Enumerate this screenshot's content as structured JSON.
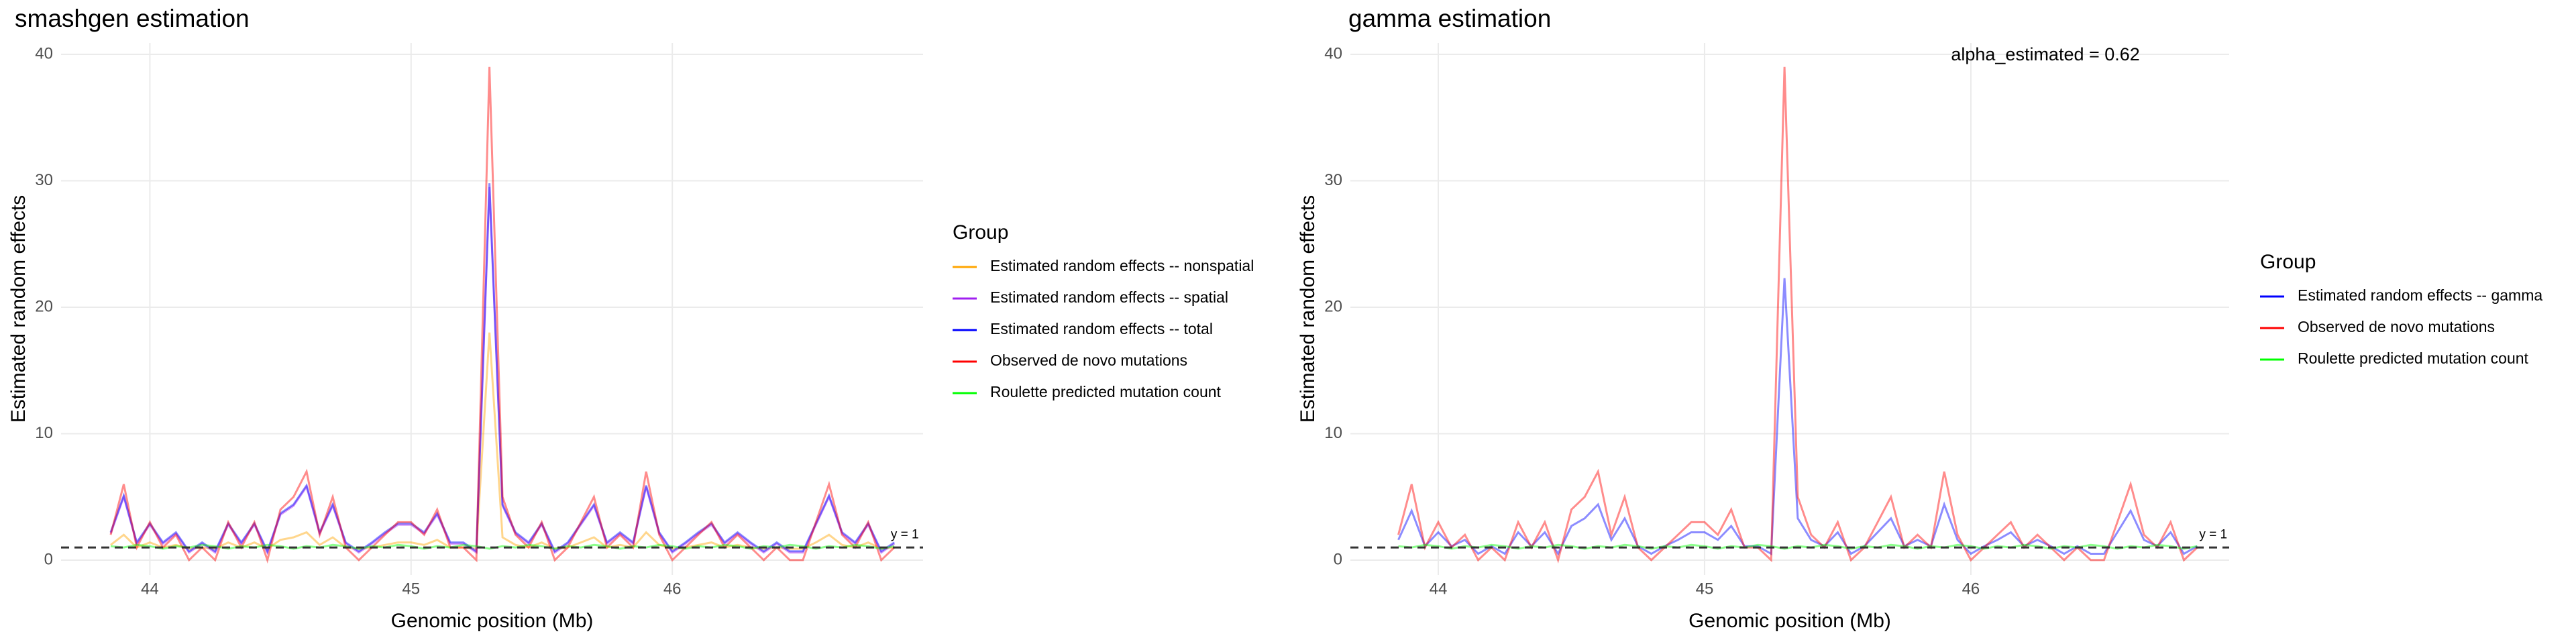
{
  "chart_data": [
    {
      "type": "line",
      "title": "smashgen estimation",
      "xlabel": "Genomic position (Mb)",
      "ylabel": "Estimated random effects",
      "x": [
        43.85,
        43.9,
        43.95,
        44.0,
        44.05,
        44.1,
        44.15,
        44.2,
        44.25,
        44.3,
        44.35,
        44.4,
        44.45,
        44.5,
        44.55,
        44.6,
        44.65,
        44.7,
        44.75,
        44.8,
        44.85,
        44.9,
        44.95,
        45.0,
        45.05,
        45.1,
        45.15,
        45.2,
        45.25,
        45.3,
        45.35,
        45.4,
        45.45,
        45.5,
        45.55,
        45.6,
        45.65,
        45.7,
        45.75,
        45.8,
        45.85,
        45.9,
        45.95,
        46.0,
        46.05,
        46.1,
        46.15,
        46.2,
        46.25,
        46.3,
        46.35,
        46.4,
        46.45,
        46.5,
        46.55,
        46.6,
        46.65,
        46.7,
        46.75,
        46.8,
        46.85
      ],
      "series": [
        {
          "name": "Estimated random effects -- nonspatial",
          "color": "#FFA500",
          "values": [
            1.2,
            2.0,
            1.0,
            1.4,
            1.0,
            1.2,
            0.9,
            1.0,
            0.9,
            1.4,
            1.0,
            1.4,
            0.9,
            1.6,
            1.8,
            2.2,
            1.2,
            1.8,
            1.0,
            0.9,
            1.0,
            1.2,
            1.4,
            1.4,
            1.2,
            1.6,
            1.0,
            1.0,
            0.9,
            18,
            1.8,
            1.2,
            1.0,
            1.4,
            0.9,
            1.0,
            1.4,
            1.8,
            1.0,
            1.2,
            1.0,
            2.2,
            1.2,
            0.9,
            1.0,
            1.2,
            1.4,
            1.0,
            1.2,
            1.0,
            0.9,
            1.0,
            0.9,
            0.9,
            1.4,
            2.0,
            1.2,
            1.0,
            1.4,
            0.9,
            1.0
          ]
        },
        {
          "name": "Estimated random effects -- spatial",
          "color": "#A020F0",
          "values": [
            2.1,
            5.0,
            1.3,
            2.8,
            1.3,
            2.1,
            0.6,
            1.3,
            0.6,
            2.8,
            1.3,
            2.8,
            0.6,
            3.6,
            4.3,
            5.8,
            2.1,
            4.3,
            1.3,
            0.6,
            1.3,
            2.1,
            2.8,
            2.8,
            2.1,
            3.6,
            1.3,
            1.3,
            0.6,
            29.5,
            4.3,
            2.1,
            1.3,
            2.8,
            0.6,
            1.3,
            2.8,
            4.3,
            1.3,
            2.1,
            1.3,
            5.8,
            2.1,
            0.6,
            1.3,
            2.1,
            2.8,
            1.3,
            2.1,
            1.3,
            0.6,
            1.3,
            0.6,
            0.6,
            2.8,
            5.0,
            2.1,
            1.3,
            2.8,
            0.6,
            1.3
          ]
        },
        {
          "name": "Estimated random effects -- total",
          "color": "#0000FF",
          "values": [
            2.2,
            5.1,
            1.4,
            2.9,
            1.4,
            2.2,
            0.7,
            1.4,
            0.7,
            2.9,
            1.4,
            2.9,
            0.7,
            3.7,
            4.4,
            5.9,
            2.2,
            4.4,
            1.4,
            0.7,
            1.4,
            2.2,
            2.9,
            2.9,
            2.2,
            3.7,
            1.4,
            1.4,
            0.7,
            29.8,
            4.4,
            2.2,
            1.4,
            2.9,
            0.7,
            1.4,
            2.9,
            4.4,
            1.4,
            2.2,
            1.4,
            5.9,
            2.2,
            0.7,
            1.4,
            2.2,
            2.9,
            1.4,
            2.2,
            1.4,
            0.7,
            1.4,
            0.7,
            0.7,
            2.9,
            5.1,
            2.2,
            1.4,
            2.9,
            0.7,
            1.4
          ]
        },
        {
          "name": "Observed de novo mutations",
          "color": "#FF0000",
          "values": [
            2,
            6,
            1,
            3,
            1,
            2,
            0,
            1,
            0,
            3,
            1,
            3,
            0,
            4,
            5,
            7,
            2,
            5,
            1,
            0,
            1,
            2,
            3,
            3,
            2,
            4,
            1,
            1,
            0,
            39,
            5,
            2,
            1,
            3,
            0,
            1,
            3,
            5,
            1,
            2,
            1,
            7,
            2,
            0,
            1,
            2,
            3,
            1,
            2,
            1,
            0,
            1,
            0,
            0,
            3,
            6,
            2,
            1,
            3,
            0,
            1
          ]
        },
        {
          "name": "Roulette predicted mutation count",
          "color": "#00FF00",
          "values": [
            1.1,
            1.0,
            1.2,
            1.1,
            0.9,
            1.1,
            1.0,
            1.2,
            1.1,
            0.9,
            1.1,
            1.0,
            1.2,
            1.1,
            0.9,
            1.1,
            1.0,
            1.2,
            1.1,
            0.9,
            1.1,
            1.0,
            1.2,
            1.1,
            0.9,
            1.1,
            1.0,
            1.2,
            1.1,
            0.9,
            1.1,
            1.0,
            1.2,
            1.1,
            0.9,
            1.1,
            1.0,
            1.2,
            1.1,
            0.9,
            1.1,
            1.0,
            1.2,
            1.1,
            0.9,
            1.1,
            1.0,
            1.2,
            1.1,
            0.9,
            1.1,
            1.0,
            1.2,
            1.1,
            0.9,
            1.1,
            1.0,
            1.2,
            1.1,
            0.9,
            1.1
          ]
        }
      ],
      "line_alpha": 0.45,
      "xlim": [
        43.66,
        46.96
      ],
      "xticks": [
        44,
        45,
        46
      ],
      "ylim": [
        -1.17,
        40.9
      ],
      "yticks": [
        0,
        10,
        20,
        30,
        40
      ],
      "grid": true,
      "hline": 1,
      "legend_title": "Group",
      "legend_position": "right",
      "annotations": [
        {
          "text": "y = 1",
          "x": 46.89,
          "y": 2.0,
          "color": "#000000"
        }
      ]
    },
    {
      "type": "line",
      "title": "gamma estimation",
      "xlabel": "Genomic position (Mb)",
      "ylabel": "Estimated random effects",
      "x": [
        43.85,
        43.9,
        43.95,
        44.0,
        44.05,
        44.1,
        44.15,
        44.2,
        44.25,
        44.3,
        44.35,
        44.4,
        44.45,
        44.5,
        44.55,
        44.6,
        44.65,
        44.7,
        44.75,
        44.8,
        44.85,
        44.9,
        44.95,
        45.0,
        45.05,
        45.1,
        45.15,
        45.2,
        45.25,
        45.3,
        45.35,
        45.4,
        45.45,
        45.5,
        45.55,
        45.6,
        45.65,
        45.7,
        45.75,
        45.8,
        45.85,
        45.9,
        45.95,
        46.0,
        46.05,
        46.1,
        46.15,
        46.2,
        46.25,
        46.3,
        46.35,
        46.4,
        46.45,
        46.5,
        46.55,
        46.6,
        46.65,
        46.7,
        46.75,
        46.8,
        46.85
      ],
      "series": [
        {
          "name": "Estimated random effects -- gamma",
          "color": "#0000FF",
          "values": [
            1.6,
            3.9,
            1.1,
            2.2,
            1.1,
            1.6,
            0.5,
            1.1,
            0.5,
            2.2,
            1.1,
            2.2,
            0.5,
            2.7,
            3.3,
            4.4,
            1.6,
            3.3,
            1.1,
            0.5,
            1.1,
            1.6,
            2.2,
            2.2,
            1.6,
            2.7,
            1.1,
            1.1,
            0.5,
            22.3,
            3.3,
            1.6,
            1.1,
            2.2,
            0.5,
            1.1,
            2.2,
            3.3,
            1.1,
            1.6,
            1.1,
            4.4,
            1.6,
            0.5,
            1.1,
            1.6,
            2.2,
            1.1,
            1.6,
            1.1,
            0.5,
            1.1,
            0.5,
            0.5,
            2.2,
            3.9,
            1.6,
            1.1,
            2.2,
            0.5,
            1.1
          ]
        },
        {
          "name": "Observed de novo mutations",
          "color": "#FF0000",
          "values": [
            2,
            6,
            1,
            3,
            1,
            2,
            0,
            1,
            0,
            3,
            1,
            3,
            0,
            4,
            5,
            7,
            2,
            5,
            1,
            0,
            1,
            2,
            3,
            3,
            2,
            4,
            1,
            1,
            0,
            39,
            5,
            2,
            1,
            3,
            0,
            1,
            3,
            5,
            1,
            2,
            1,
            7,
            2,
            0,
            1,
            2,
            3,
            1,
            2,
            1,
            0,
            1,
            0,
            0,
            3,
            6,
            2,
            1,
            3,
            0,
            1
          ]
        },
        {
          "name": "Roulette predicted mutation count",
          "color": "#00FF00",
          "values": [
            1.1,
            1.0,
            1.2,
            1.1,
            0.9,
            1.1,
            1.0,
            1.2,
            1.1,
            0.9,
            1.1,
            1.0,
            1.2,
            1.1,
            0.9,
            1.1,
            1.0,
            1.2,
            1.1,
            0.9,
            1.1,
            1.0,
            1.2,
            1.1,
            0.9,
            1.1,
            1.0,
            1.2,
            1.1,
            0.9,
            1.1,
            1.0,
            1.2,
            1.1,
            0.9,
            1.1,
            1.0,
            1.2,
            1.1,
            0.9,
            1.1,
            1.0,
            1.2,
            1.1,
            0.9,
            1.1,
            1.0,
            1.2,
            1.1,
            0.9,
            1.1,
            1.0,
            1.2,
            1.1,
            0.9,
            1.1,
            1.0,
            1.2,
            1.1,
            0.9,
            1.1
          ]
        }
      ],
      "line_alpha": 0.45,
      "xlim": [
        43.67,
        46.97
      ],
      "xticks": [
        44,
        45,
        46
      ],
      "ylim": [
        -1.17,
        40.9
      ],
      "yticks": [
        0,
        10,
        20,
        30,
        40
      ],
      "grid": true,
      "hline": 1,
      "legend_title": "Group",
      "legend_position": "right",
      "annotations": [
        {
          "text": "y = 1",
          "x": 46.91,
          "y": 2.0,
          "color": "#000000"
        },
        {
          "text": "alpha_estimated = 0.62",
          "x": 46.28,
          "y": 39.9,
          "color": "#0000FF"
        }
      ]
    }
  ]
}
